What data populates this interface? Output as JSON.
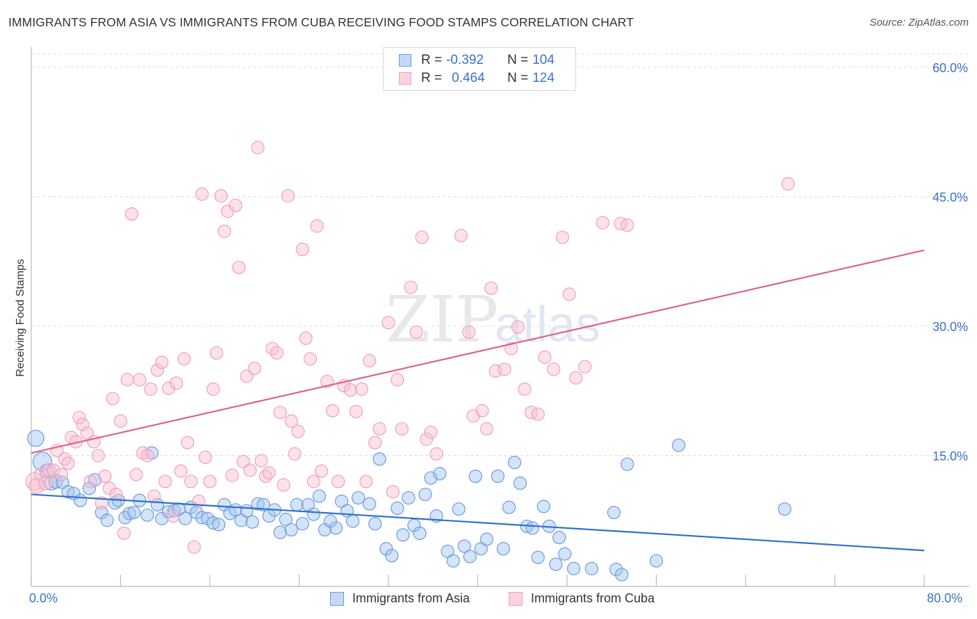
{
  "title": "IMMIGRANTS FROM ASIA VS IMMIGRANTS FROM CUBA RECEIVING FOOD STAMPS CORRELATION CHART",
  "source": "Source: ZipAtlas.com",
  "watermark": "ZIPatlas",
  "legend_top": {
    "rows": [
      {
        "r_label": "R = ",
        "r_value": "-0.392",
        "n_label": "N = ",
        "n_value": "104",
        "color": "#6a9be0"
      },
      {
        "r_label": "R = ",
        "r_value": "0.464",
        "n_label": "N = ",
        "n_value": "124",
        "color": "#f0a0b8"
      }
    ]
  },
  "legend_bottom": {
    "items": [
      {
        "label": "Immigrants from Asia",
        "color": "#6a9be0"
      },
      {
        "label": "Immigrants from Cuba",
        "color": "#f0a0b8"
      }
    ]
  },
  "chart_data": {
    "type": "scatter",
    "title": "IMMIGRANTS FROM ASIA VS IMMIGRANTS FROM CUBA RECEIVING FOOD STAMPS CORRELATION CHART",
    "xlabel": "",
    "ylabel": "Receiving Food Stamps",
    "xlim": [
      0,
      80
    ],
    "ylim": [
      0,
      60
    ],
    "x_tick_labels": [
      "0.0%",
      "80.0%"
    ],
    "y_tick_labels": [
      "15.0%",
      "30.0%",
      "45.0%",
      "60.0%"
    ],
    "y_ticks": [
      15,
      30,
      45,
      60
    ],
    "grid": true,
    "legend_position": "top-center",
    "series": [
      {
        "name": "Immigrants from Asia",
        "color": "#6a9be0",
        "trend": {
          "x": [
            0,
            80
          ],
          "y": [
            10.5,
            4.0
          ]
        },
        "points": [
          [
            0.4,
            17.0,
            1.3
          ],
          [
            1.0,
            14.3,
            1.5
          ],
          [
            1.4,
            13.2,
            1.1
          ],
          [
            1.8,
            11.8,
            1.1
          ],
          [
            2.2,
            12.0,
            1.1
          ],
          [
            2.8,
            11.9,
            1.0
          ],
          [
            3.3,
            10.8,
            1.0
          ],
          [
            3.8,
            10.6,
            1.0
          ],
          [
            4.4,
            9.8,
            1.0
          ],
          [
            5.2,
            11.2,
            1.0
          ],
          [
            5.7,
            12.2,
            1.0
          ],
          [
            6.3,
            8.4,
            1.0
          ],
          [
            6.8,
            7.5,
            1.0
          ],
          [
            7.5,
            9.5,
            1.0
          ],
          [
            7.8,
            9.8,
            1.0
          ],
          [
            8.4,
            7.8,
            1.0
          ],
          [
            8.8,
            8.3,
            1.0
          ],
          [
            9.2,
            8.4,
            1.0
          ],
          [
            9.7,
            9.8,
            1.0
          ],
          [
            10.4,
            8.1,
            1.0
          ],
          [
            10.8,
            15.3,
            1.0
          ],
          [
            11.3,
            9.3,
            1.0
          ],
          [
            11.7,
            7.7,
            1.0
          ],
          [
            12.3,
            8.5,
            1.0
          ],
          [
            12.8,
            8.6,
            1.0
          ],
          [
            13.2,
            8.8,
            1.0
          ],
          [
            13.8,
            7.7,
            1.0
          ],
          [
            14.3,
            9.0,
            1.0
          ],
          [
            14.8,
            8.4,
            1.0
          ],
          [
            15.3,
            7.8,
            1.0
          ],
          [
            15.8,
            7.7,
            1.0
          ],
          [
            16.3,
            7.2,
            1.0
          ],
          [
            16.8,
            7.0,
            1.0
          ],
          [
            17.3,
            9.3,
            1.0
          ],
          [
            17.8,
            8.3,
            1.0
          ],
          [
            18.3,
            8.7,
            1.0
          ],
          [
            18.8,
            7.5,
            1.0
          ],
          [
            19.3,
            8.6,
            1.0
          ],
          [
            19.8,
            7.3,
            1.0
          ],
          [
            20.3,
            9.4,
            1.0
          ],
          [
            20.8,
            9.3,
            1.0
          ],
          [
            21.3,
            8.0,
            1.0
          ],
          [
            21.8,
            8.7,
            1.0
          ],
          [
            22.3,
            6.1,
            1.0
          ],
          [
            22.8,
            7.6,
            1.0
          ],
          [
            23.3,
            6.4,
            1.0
          ],
          [
            23.8,
            9.3,
            1.0
          ],
          [
            24.3,
            7.1,
            1.0
          ],
          [
            24.8,
            9.3,
            1.0
          ],
          [
            25.3,
            8.2,
            1.0
          ],
          [
            25.8,
            10.3,
            1.0
          ],
          [
            26.3,
            6.4,
            1.0
          ],
          [
            26.8,
            7.4,
            1.0
          ],
          [
            27.3,
            6.6,
            1.0
          ],
          [
            27.8,
            9.7,
            1.0
          ],
          [
            28.3,
            8.6,
            1.0
          ],
          [
            28.8,
            7.4,
            1.0
          ],
          [
            29.3,
            10.1,
            1.0
          ],
          [
            30.3,
            9.4,
            1.0
          ],
          [
            30.8,
            7.1,
            1.0
          ],
          [
            31.2,
            14.6,
            1.0
          ],
          [
            31.8,
            4.2,
            1.0
          ],
          [
            32.3,
            3.4,
            1.0
          ],
          [
            32.8,
            8.9,
            1.0
          ],
          [
            33.3,
            5.8,
            1.0
          ],
          [
            33.8,
            10.1,
            1.0
          ],
          [
            34.3,
            6.9,
            1.0
          ],
          [
            34.8,
            6.0,
            1.0
          ],
          [
            35.3,
            10.5,
            1.0
          ],
          [
            35.8,
            12.4,
            1.0
          ],
          [
            36.3,
            8.0,
            1.0
          ],
          [
            36.6,
            12.9,
            1.0
          ],
          [
            37.3,
            3.9,
            1.0
          ],
          [
            37.8,
            2.8,
            1.0
          ],
          [
            38.3,
            8.8,
            1.0
          ],
          [
            38.8,
            4.5,
            1.0
          ],
          [
            39.3,
            3.3,
            1.0
          ],
          [
            39.8,
            12.6,
            1.0
          ],
          [
            40.3,
            4.2,
            1.0
          ],
          [
            40.8,
            5.3,
            1.0
          ],
          [
            41.8,
            12.6,
            1.0
          ],
          [
            42.3,
            4.2,
            1.0
          ],
          [
            42.8,
            9.0,
            1.0
          ],
          [
            43.3,
            14.2,
            1.0
          ],
          [
            43.8,
            11.8,
            1.0
          ],
          [
            44.4,
            6.8,
            1.0
          ],
          [
            44.9,
            6.6,
            1.0
          ],
          [
            45.4,
            3.2,
            1.0
          ],
          [
            45.9,
            9.1,
            1.0
          ],
          [
            46.4,
            6.8,
            1.0
          ],
          [
            47.0,
            2.4,
            1.0
          ],
          [
            47.3,
            5.5,
            1.0
          ],
          [
            47.8,
            3.6,
            1.0
          ],
          [
            48.6,
            1.9,
            1.0
          ],
          [
            50.2,
            1.9,
            1.0
          ],
          [
            52.2,
            8.4,
            1.0
          ],
          [
            52.4,
            1.8,
            1.0
          ],
          [
            52.9,
            1.2,
            1.0
          ],
          [
            53.4,
            14.0,
            1.0
          ],
          [
            56.0,
            2.8,
            1.0
          ],
          [
            58.0,
            16.2,
            1.0
          ],
          [
            67.5,
            8.8,
            1.0
          ]
        ]
      },
      {
        "name": "Immigrants from Cuba",
        "color": "#f0a0b8",
        "trend": {
          "x": [
            0,
            80
          ],
          "y": [
            15.3,
            38.8
          ]
        },
        "points": [
          [
            0.3,
            12.0,
            1.4
          ],
          [
            0.5,
            11.5,
            1.2
          ],
          [
            0.9,
            12.8,
            1.1
          ],
          [
            1.3,
            11.8,
            1.1
          ],
          [
            1.6,
            13.3,
            1.1
          ],
          [
            2.0,
            13.3,
            1.0
          ],
          [
            2.3,
            15.6,
            1.0
          ],
          [
            2.7,
            12.8,
            1.0
          ],
          [
            3.0,
            14.6,
            1.0
          ],
          [
            3.3,
            14.1,
            1.0
          ],
          [
            3.6,
            17.1,
            1.0
          ],
          [
            4.0,
            16.6,
            1.0
          ],
          [
            4.3,
            19.4,
            1.0
          ],
          [
            4.6,
            18.6,
            1.0
          ],
          [
            5.0,
            17.6,
            1.0
          ],
          [
            5.3,
            12.0,
            1.0
          ],
          [
            5.6,
            16.6,
            1.0
          ],
          [
            6.0,
            15.0,
            1.0
          ],
          [
            6.3,
            9.5,
            1.0
          ],
          [
            6.6,
            12.6,
            1.0
          ],
          [
            7.0,
            11.2,
            1.0
          ],
          [
            7.3,
            21.6,
            1.0
          ],
          [
            7.6,
            10.5,
            1.0
          ],
          [
            8.0,
            19.0,
            1.0
          ],
          [
            8.3,
            6.0,
            1.0
          ],
          [
            8.6,
            23.8,
            1.0
          ],
          [
            9.0,
            43.0,
            1.0
          ],
          [
            9.4,
            12.8,
            1.0
          ],
          [
            9.7,
            23.8,
            1.0
          ],
          [
            10.0,
            15.3,
            1.0
          ],
          [
            10.4,
            15.0,
            1.0
          ],
          [
            10.7,
            22.7,
            1.0
          ],
          [
            11.0,
            10.3,
            1.0
          ],
          [
            11.3,
            24.9,
            1.0
          ],
          [
            11.7,
            25.8,
            1.0
          ],
          [
            12.0,
            12.0,
            1.0
          ],
          [
            12.3,
            22.8,
            1.0
          ],
          [
            12.7,
            8.0,
            1.0
          ],
          [
            13.0,
            23.4,
            1.0
          ],
          [
            13.4,
            13.2,
            1.0
          ],
          [
            13.7,
            26.2,
            1.0
          ],
          [
            14.0,
            16.5,
            1.0
          ],
          [
            14.3,
            12.0,
            1.0
          ],
          [
            14.6,
            4.4,
            1.0
          ],
          [
            15.0,
            9.7,
            1.0
          ],
          [
            15.3,
            45.3,
            1.0
          ],
          [
            15.6,
            14.8,
            1.0
          ],
          [
            16.0,
            12.0,
            1.0
          ],
          [
            16.3,
            22.7,
            1.0
          ],
          [
            16.6,
            26.9,
            1.0
          ],
          [
            17.0,
            45.1,
            1.0
          ],
          [
            17.3,
            41.0,
            1.0
          ],
          [
            17.6,
            43.3,
            1.0
          ],
          [
            18.0,
            12.7,
            1.0
          ],
          [
            18.3,
            44.0,
            1.0
          ],
          [
            18.6,
            36.8,
            1.0
          ],
          [
            19.0,
            14.3,
            1.0
          ],
          [
            19.3,
            24.2,
            1.0
          ],
          [
            19.6,
            13.3,
            1.0
          ],
          [
            20.0,
            25.1,
            1.0
          ],
          [
            20.3,
            50.7,
            1.0
          ],
          [
            20.6,
            14.4,
            1.0
          ],
          [
            21.0,
            12.6,
            1.0
          ],
          [
            21.3,
            13.0,
            1.0
          ],
          [
            21.6,
            27.4,
            1.0
          ],
          [
            22.0,
            26.9,
            1.0
          ],
          [
            22.3,
            20.0,
            1.0
          ],
          [
            22.6,
            11.6,
            1.0
          ],
          [
            23.0,
            45.1,
            1.0
          ],
          [
            23.3,
            19.0,
            1.0
          ],
          [
            23.6,
            15.2,
            1.0
          ],
          [
            23.9,
            17.8,
            1.0
          ],
          [
            24.3,
            38.9,
            1.0
          ],
          [
            24.6,
            28.6,
            1.0
          ],
          [
            25.0,
            26.2,
            1.0
          ],
          [
            25.3,
            12.0,
            1.0
          ],
          [
            25.6,
            41.6,
            1.0
          ],
          [
            26.0,
            13.2,
            1.0
          ],
          [
            26.5,
            23.6,
            1.0
          ],
          [
            27.0,
            20.2,
            1.0
          ],
          [
            27.5,
            12.0,
            1.0
          ],
          [
            28.0,
            23.1,
            1.0
          ],
          [
            28.6,
            22.6,
            1.0
          ],
          [
            29.1,
            20.1,
            1.0
          ],
          [
            29.6,
            22.7,
            1.0
          ],
          [
            30.0,
            12.0,
            1.0
          ],
          [
            30.3,
            26.0,
            1.0
          ],
          [
            30.8,
            16.5,
            1.0
          ],
          [
            31.2,
            18.1,
            1.0
          ],
          [
            32.0,
            30.4,
            1.0
          ],
          [
            32.4,
            10.8,
            1.0
          ],
          [
            32.8,
            23.8,
            1.0
          ],
          [
            33.2,
            18.1,
            1.0
          ],
          [
            34.0,
            34.5,
            1.0
          ],
          [
            34.5,
            29.3,
            1.0
          ],
          [
            35.0,
            40.3,
            1.0
          ],
          [
            35.4,
            16.9,
            1.0
          ],
          [
            35.8,
            17.7,
            1.0
          ],
          [
            36.3,
            15.2,
            1.0
          ],
          [
            38.5,
            40.5,
            1.0
          ],
          [
            39.2,
            29.3,
            1.0
          ],
          [
            39.6,
            19.6,
            1.0
          ],
          [
            40.4,
            20.2,
            1.0
          ],
          [
            40.8,
            18.1,
            1.0
          ],
          [
            41.2,
            34.4,
            1.0
          ],
          [
            41.6,
            24.8,
            1.0
          ],
          [
            42.4,
            25.0,
            1.0
          ],
          [
            43.0,
            27.4,
            1.0
          ],
          [
            43.6,
            29.9,
            1.0
          ],
          [
            44.2,
            22.7,
            1.0
          ],
          [
            44.8,
            20.0,
            1.0
          ],
          [
            45.4,
            19.8,
            1.0
          ],
          [
            46.0,
            26.4,
            1.0
          ],
          [
            46.8,
            25.0,
            1.0
          ],
          [
            47.6,
            40.3,
            1.0
          ],
          [
            48.2,
            33.7,
            1.0
          ],
          [
            48.8,
            24.0,
            1.0
          ],
          [
            49.6,
            25.3,
            1.0
          ],
          [
            51.2,
            42.0,
            1.0
          ],
          [
            52.8,
            41.9,
            1.0
          ],
          [
            53.4,
            41.7,
            1.0
          ],
          [
            67.8,
            46.5,
            1.0
          ]
        ]
      }
    ]
  }
}
